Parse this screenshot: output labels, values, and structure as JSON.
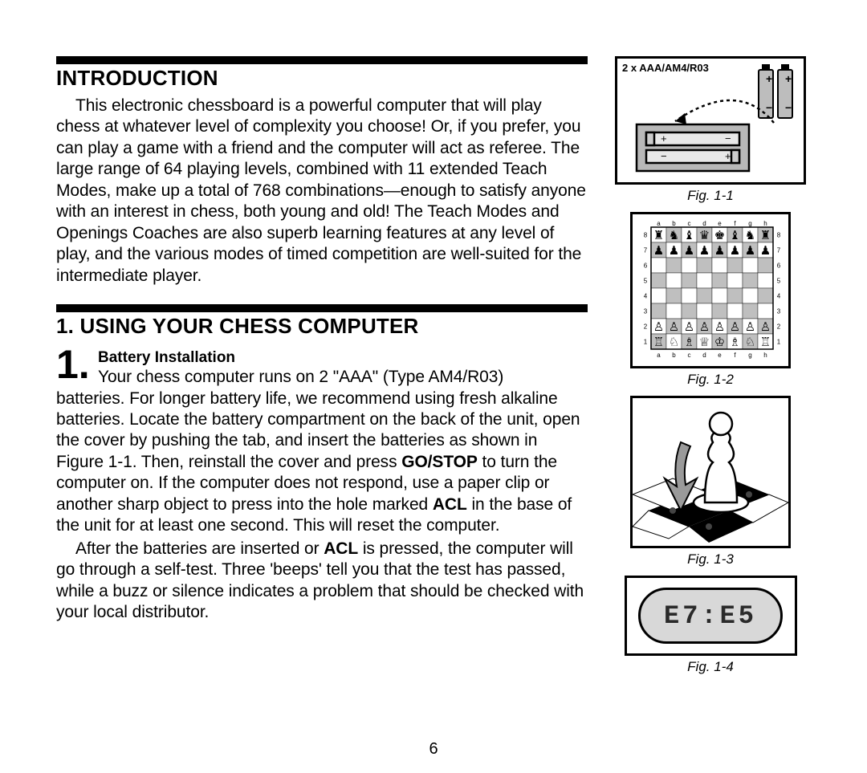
{
  "section1_title": "INTRODUCTION",
  "intro_para": "This electronic chessboard is a powerful computer that will play chess at whatever level of complexity you choose! Or, if you prefer, you can play a game with a friend and the computer will act as referee. The large range of 64 playing levels, combined with 11 extended Teach Modes, make up a total of 768 combinations—enough to satisfy anyone with an interest in chess, both young and old! The Teach Modes and Openings Coaches are also  superb learning features at any level of play, and the various modes of timed competition are well-suited for the intermediate player.",
  "section2_title": "1. USING YOUR CHESS COMPUTER",
  "step1_num": "1.",
  "step1_title": "Battery Installation",
  "step1_line1": "Your chess computer runs on 2 \"AAA\" (Type AM4/R03)",
  "step1_rest_before_go": "batteries. For longer battery life, we recommend using fresh alkaline batteries. Locate the battery compartment on the back of the unit, open the cover by pushing the tab, and insert the batteries as shown in Figure 1-1. Then, reinstall the cover and press ",
  "go_stop": "GO/STOP",
  "step1_rest_mid": " to turn the computer on. If the computer does not respond, use a paper clip or another sharp object to press into the hole marked ",
  "acl": "ACL",
  "step1_rest_after_acl": " in the base of the unit for at least one second. This will reset the computer.",
  "step1_para2_a": "After the batteries are inserted or ",
  "step1_para2_b": " is pressed, the computer will go through a self-test. Three 'beeps' tell you that the test has passed, while a buzz or silence indicates a problem that should be checked with your local distributor.",
  "page_number": "6",
  "fig1": {
    "batt_label": "2 x AAA/AM4/R03",
    "caption": "Fig. 1-1"
  },
  "fig2": {
    "caption": "Fig. 1-2",
    "files": [
      "a",
      "b",
      "c",
      "d",
      "e",
      "f",
      "g",
      "h"
    ],
    "ranks": [
      "8",
      "7",
      "6",
      "5",
      "4",
      "3",
      "2",
      "1"
    ],
    "pieces": {
      "8": [
        "♜",
        "♞",
        "♝",
        "♛",
        "♚",
        "♝",
        "♞",
        "♜"
      ],
      "7": [
        "♟",
        "♟",
        "♟",
        "♟",
        "♟",
        "♟",
        "♟",
        "♟"
      ],
      "2": [
        "♙",
        "♙",
        "♙",
        "♙",
        "♙",
        "♙",
        "♙",
        "♙"
      ],
      "1": [
        "♖",
        "♘",
        "♗",
        "♕",
        "♔",
        "♗",
        "♘",
        "♖"
      ]
    },
    "light_sq": "#ffffff",
    "dark_sq": "#bfbfbf"
  },
  "fig3": {
    "caption": "Fig. 1-3"
  },
  "fig4": {
    "caption": "Fig. 1-4",
    "display": "E7:E5"
  }
}
